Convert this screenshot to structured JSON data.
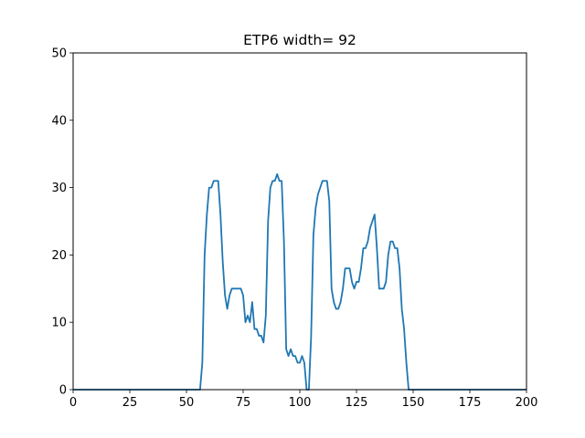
{
  "chart_data": {
    "type": "line",
    "title": "ETP6 width= 92",
    "xlabel": "",
    "ylabel": "",
    "xlim": [
      0,
      200
    ],
    "ylim": [
      0,
      50
    ],
    "x_ticks": [
      0,
      25,
      50,
      75,
      100,
      125,
      150,
      175,
      200
    ],
    "y_ticks": [
      0,
      10,
      20,
      30,
      40,
      50
    ],
    "grid": false,
    "legend": "none",
    "series_color": "#1f77b4",
    "series": [
      {
        "x": [
          0,
          56,
          57,
          58,
          59,
          60,
          61,
          62,
          63,
          64,
          65,
          66,
          67,
          68,
          69,
          70,
          71,
          72,
          73,
          74,
          75,
          76,
          77,
          78,
          79,
          80,
          81,
          82,
          83,
          84,
          85,
          86,
          87,
          88,
          89,
          90,
          91,
          92,
          93,
          94,
          95,
          96,
          97,
          98,
          99,
          100,
          101,
          102,
          103,
          104,
          105,
          106,
          107,
          108,
          109,
          110,
          111,
          112,
          113,
          114,
          115,
          116,
          117,
          118,
          119,
          120,
          121,
          122,
          123,
          124,
          125,
          126,
          127,
          128,
          129,
          130,
          131,
          132,
          133,
          134,
          135,
          136,
          137,
          138,
          139,
          140,
          141,
          142,
          143,
          144,
          145,
          146,
          147,
          148,
          200
        ],
        "y": [
          0,
          0,
          4,
          20,
          26,
          30,
          30,
          31,
          31,
          31,
          26,
          19,
          14,
          12,
          14,
          15,
          15,
          15,
          15,
          15,
          14,
          10,
          11,
          10,
          13,
          9,
          9,
          8,
          8,
          7,
          11,
          25,
          30,
          31,
          31,
          32,
          31,
          31,
          22,
          6,
          5,
          6,
          5,
          5,
          4,
          4,
          5,
          4,
          0,
          0,
          8,
          23,
          27,
          29,
          30,
          31,
          31,
          31,
          28,
          15,
          13,
          12,
          12,
          13,
          15,
          18,
          18,
          18,
          16,
          15,
          16,
          16,
          18,
          21,
          21,
          22,
          24,
          25,
          26,
          21,
          15,
          15,
          15,
          16,
          20,
          22,
          22,
          21,
          21,
          18,
          12,
          9,
          4,
          0,
          0
        ]
      }
    ]
  }
}
